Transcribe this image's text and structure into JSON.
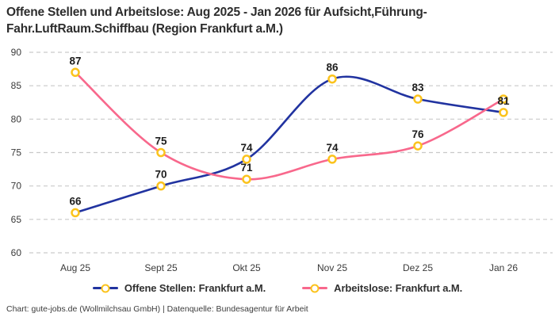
{
  "title": {
    "line1": "Offene Stellen und Arbeitslose: Aug 2025 - Jan 2026 für Aufsicht,Führung-",
    "line2": "Fahr.LuftRaum.Schiffbau (Region Frankfurt a.M.)"
  },
  "footer": "Chart: gute-jobs.de (Wollmilchsau GmbH) | Datenquelle: Bundesagentur für Arbeit",
  "chart_data": {
    "type": "line",
    "title": "Offene Stellen und Arbeitslose: Aug 2025 - Jan 2026 für Aufsicht,Führung-Fahr.LuftRaum.Schiffbau (Region Frankfurt a.M.)",
    "categories": [
      "Aug 25",
      "Sept 25",
      "Okt 25",
      "Nov 25",
      "Dez 25",
      "Jan 26"
    ],
    "series": [
      {
        "name": "Offene Stellen: Frankfurt a.M.",
        "color": "#2133a0",
        "values": [
          66,
          70,
          74,
          86,
          83,
          81
        ],
        "labels": [
          "66",
          "70",
          "74",
          "86",
          "83",
          "81"
        ]
      },
      {
        "name": "Arbeitslose: Frankfurt a.M.",
        "color": "#f8688c",
        "values": [
          87,
          75,
          71,
          74,
          76,
          83
        ],
        "labels": [
          "87",
          "75",
          "71",
          "74",
          "76",
          ""
        ]
      }
    ],
    "marker_color": "#fbc31d",
    "marker_fill": "#ffffff",
    "yticks": [
      60,
      65,
      70,
      75,
      80,
      85,
      90
    ],
    "ylim": [
      60,
      90
    ],
    "xlabel": "",
    "ylabel": "",
    "grid": "horizontal-dashed",
    "legend_position": "bottom-center"
  }
}
